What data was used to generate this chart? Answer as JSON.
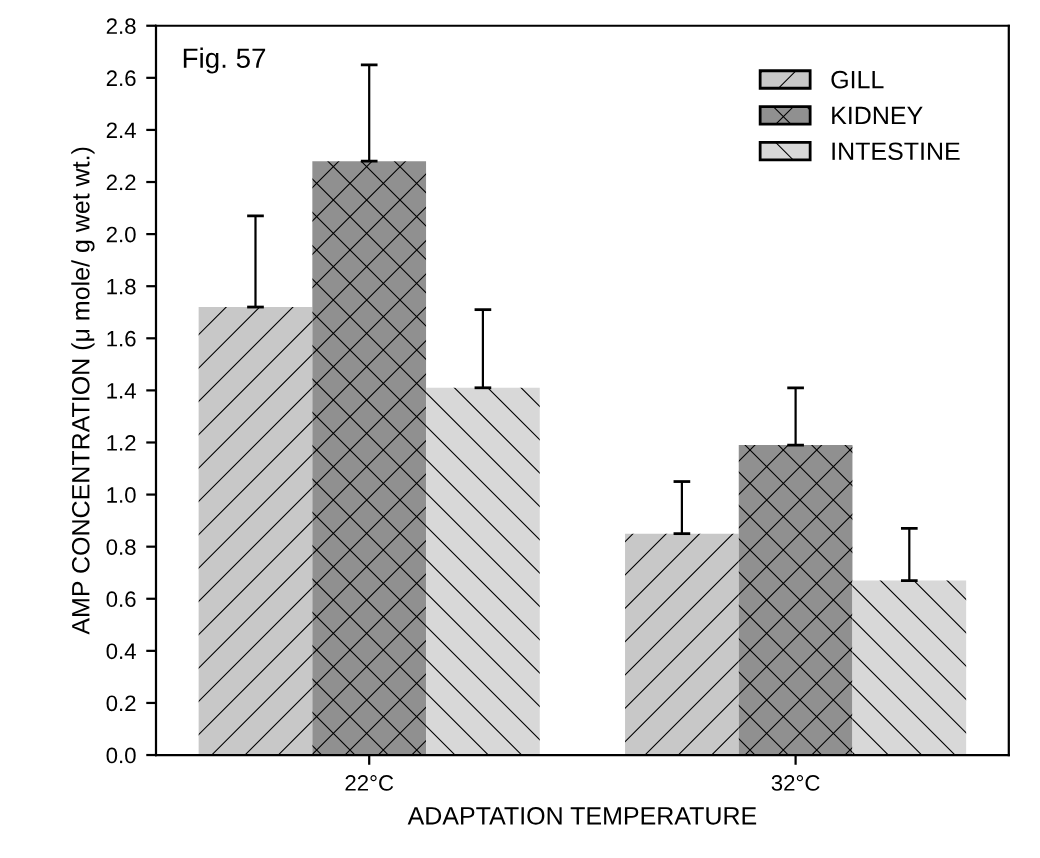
{
  "chart_data": {
    "type": "bar",
    "xlabel": "ADAPTATION TEMPERATURE",
    "ylabel": "AMP CONCENTRATION (μ mole/ g wet wt.)",
    "annotations": [
      "Fig. 57"
    ],
    "categories": [
      "22°C",
      "32°C"
    ],
    "series": [
      {
        "name": "GILL",
        "color": "#c8c8c8",
        "values": [
          1.72,
          0.85
        ],
        "errors": [
          [
            1.72,
            2.07
          ],
          [
            0.85,
            1.05
          ]
        ]
      },
      {
        "name": "KIDNEY",
        "color": "#909090",
        "values": [
          2.28,
          1.19
        ],
        "errors": [
          [
            2.28,
            2.65
          ],
          [
            1.19,
            1.41
          ]
        ]
      },
      {
        "name": "INTESTINE",
        "color": "#d8d8d8",
        "values": [
          1.41,
          0.67
        ],
        "errors": [
          [
            1.41,
            1.71
          ],
          [
            0.67,
            0.87
          ]
        ]
      }
    ],
    "ylim": [
      0,
      2.8
    ],
    "yticks": [
      {
        "value": 0,
        "label": "0.0"
      },
      0.2,
      0.4,
      0.6,
      0.8,
      {
        "value": 1,
        "label": "1.0"
      },
      1.2,
      1.4,
      1.6,
      1.8,
      {
        "value": 2,
        "label": "2.0"
      },
      2.2,
      2.4,
      2.6,
      2.8
    ],
    "grid": false,
    "legend": "top right"
  }
}
